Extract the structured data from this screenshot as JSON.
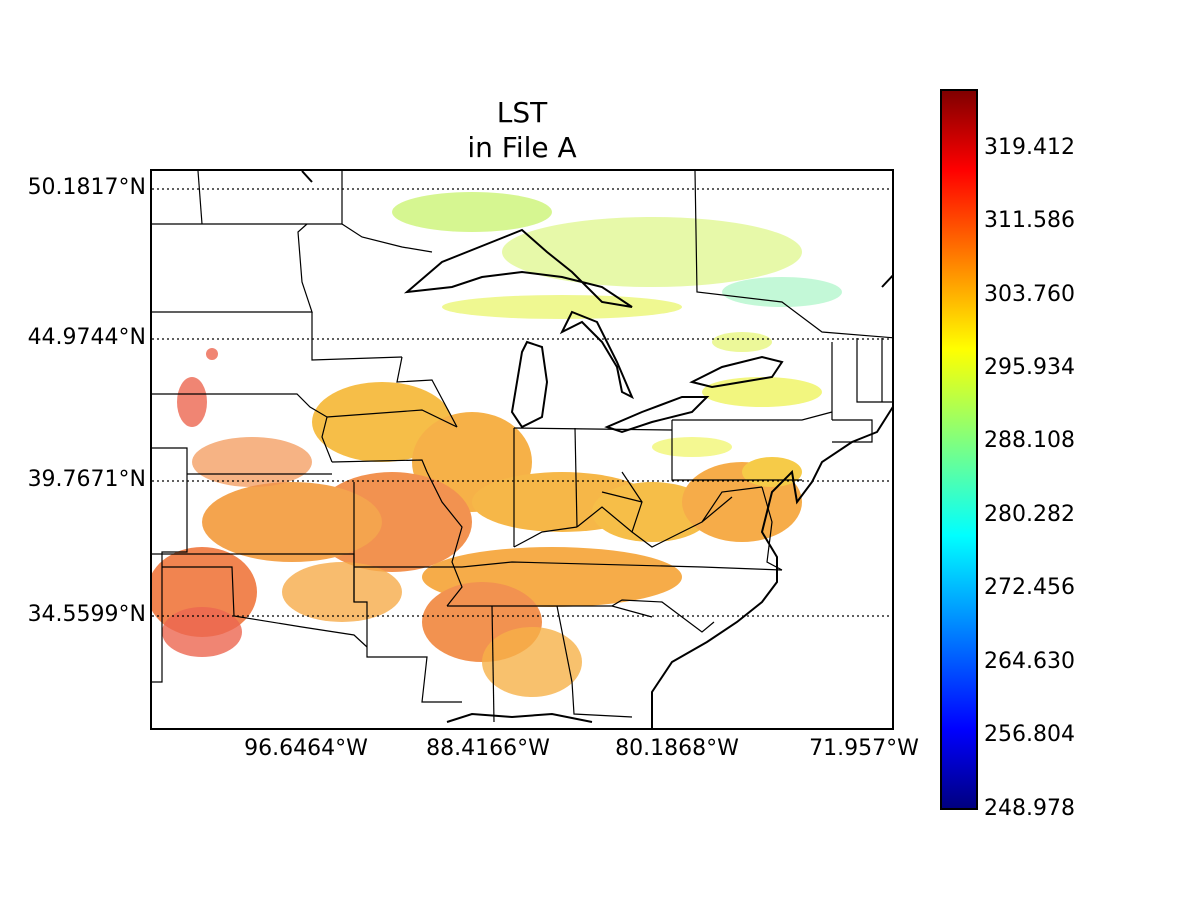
{
  "title": {
    "line1": "LST",
    "line2": "in File A"
  },
  "map": {
    "type": "map",
    "variable": "LST",
    "latitude_labels": [
      "50.1817°N",
      "44.9744°N",
      "39.7671°N",
      "34.5599°N"
    ],
    "longitude_labels": [
      "96.6464°W",
      "88.4166°W",
      "80.1868°W",
      "71.957°W"
    ],
    "gridlines": "dotted",
    "region": "Eastern and Central United States with Great Lakes",
    "colors": {
      "hot": "#e8452a",
      "warm": "#f5a020",
      "mild": "#f5d020",
      "cool": "#b8f040",
      "cold": "#60f0a0"
    }
  },
  "colorbar": {
    "colormap": "jet",
    "min": 248.978,
    "max": 327.238,
    "tick_labels": [
      "319.412",
      "311.586",
      "303.760",
      "295.934",
      "288.108",
      "280.282",
      "272.456",
      "264.630",
      "256.804",
      "248.978"
    ],
    "tick_values": [
      319.412,
      311.586,
      303.76,
      295.934,
      288.108,
      280.282,
      272.456,
      264.63,
      256.804,
      248.978
    ]
  }
}
